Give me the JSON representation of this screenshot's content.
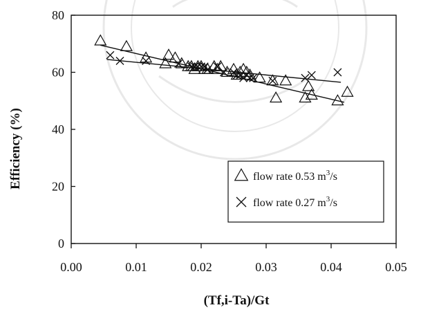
{
  "chart_data": {
    "type": "scatter",
    "xlabel": "(Tf,i-Ta)/Gt",
    "ylabel": "Efficiency (%)",
    "xlim": [
      0.0,
      0.05
    ],
    "ylim": [
      0,
      80
    ],
    "xticks": [
      "0.00",
      "0.01",
      "0.02",
      "0.03",
      "0.04",
      "0.05"
    ],
    "yticks": [
      "0",
      "20",
      "40",
      "60",
      "80"
    ],
    "grid": false,
    "legend_position": "right-middle inside plot",
    "series": [
      {
        "name": "flow rate 0.53 m³/s",
        "legend_text": "flow rate 0.53 m",
        "legend_sup": "3",
        "legend_unit_tail": "/s",
        "marker": "triangle",
        "points": [
          [
            0.0045,
            71
          ],
          [
            0.0085,
            69
          ],
          [
            0.0115,
            65
          ],
          [
            0.0145,
            63
          ],
          [
            0.015,
            66
          ],
          [
            0.016,
            65
          ],
          [
            0.017,
            63
          ],
          [
            0.018,
            62
          ],
          [
            0.0185,
            62
          ],
          [
            0.019,
            61
          ],
          [
            0.0195,
            62
          ],
          [
            0.02,
            62
          ],
          [
            0.0205,
            61
          ],
          [
            0.021,
            61
          ],
          [
            0.022,
            62
          ],
          [
            0.0225,
            61
          ],
          [
            0.023,
            62
          ],
          [
            0.024,
            60
          ],
          [
            0.025,
            61
          ],
          [
            0.0255,
            59
          ],
          [
            0.026,
            60
          ],
          [
            0.0265,
            61
          ],
          [
            0.027,
            60
          ],
          [
            0.0275,
            59
          ],
          [
            0.029,
            58
          ],
          [
            0.031,
            57
          ],
          [
            0.0315,
            51
          ],
          [
            0.033,
            57
          ],
          [
            0.036,
            51
          ],
          [
            0.0365,
            55
          ],
          [
            0.037,
            52
          ],
          [
            0.041,
            50
          ],
          [
            0.0425,
            53
          ]
        ],
        "trendline": [
          [
            0.0045,
            69.5
          ],
          [
            0.042,
            49.5
          ]
        ]
      },
      {
        "name": "flow rate 0.27 m³/s",
        "legend_text": "flow rate 0.27 m",
        "legend_sup": "3",
        "legend_unit_tail": "/s",
        "marker": "cross",
        "points": [
          [
            0.006,
            66
          ],
          [
            0.0075,
            64
          ],
          [
            0.0115,
            64
          ],
          [
            0.0165,
            63
          ],
          [
            0.0185,
            62
          ],
          [
            0.019,
            62
          ],
          [
            0.0195,
            62
          ],
          [
            0.02,
            62
          ],
          [
            0.0205,
            62
          ],
          [
            0.021,
            61
          ],
          [
            0.0225,
            62
          ],
          [
            0.0235,
            60
          ],
          [
            0.025,
            60
          ],
          [
            0.0255,
            59
          ],
          [
            0.026,
            59
          ],
          [
            0.0265,
            58
          ],
          [
            0.027,
            59
          ],
          [
            0.0275,
            58
          ],
          [
            0.028,
            58
          ],
          [
            0.031,
            57
          ],
          [
            0.036,
            58
          ],
          [
            0.037,
            59
          ],
          [
            0.041,
            60
          ]
        ],
        "trendline": [
          [
            0.0055,
            64.5
          ],
          [
            0.0415,
            56.5
          ]
        ]
      }
    ]
  }
}
